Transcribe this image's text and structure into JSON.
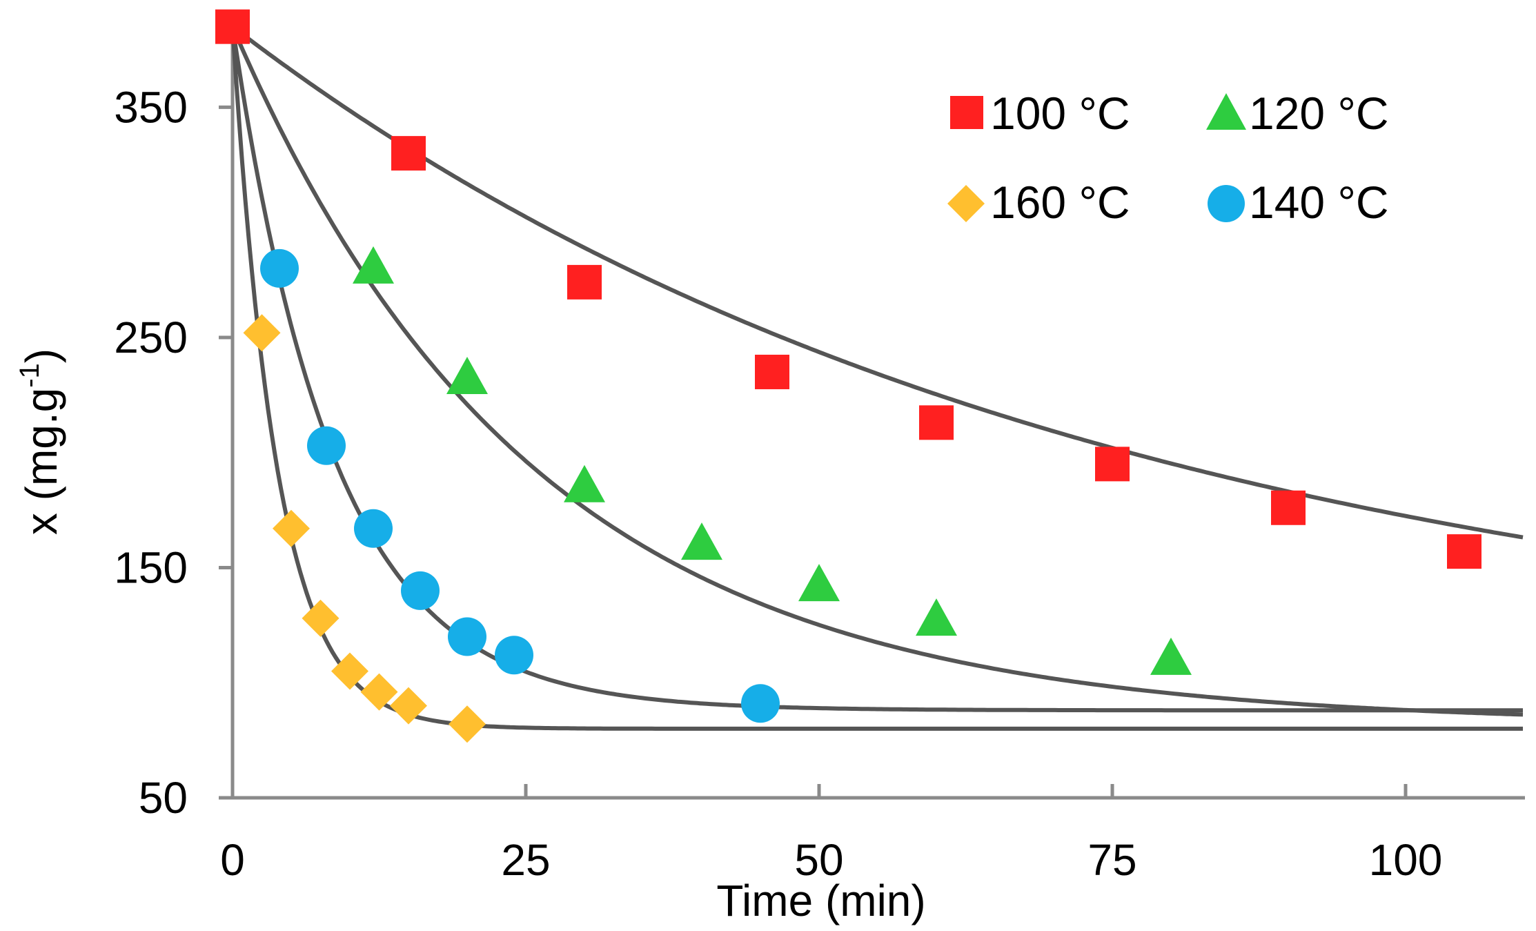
{
  "chart_data": {
    "type": "scatter",
    "title": "",
    "xlabel": "Time (min)",
    "ylabel_main": "x (mg.g",
    "ylabel_sup": "-1",
    "ylabel_close": ")",
    "xlim": [
      0,
      110
    ],
    "ylim": [
      50,
      390
    ],
    "xticks": [
      0,
      25,
      50,
      75,
      100
    ],
    "xtick_labels": [
      "0",
      "25",
      "50",
      "75",
      "100"
    ],
    "yticks": [
      50,
      150,
      250,
      350
    ],
    "ytick_labels": [
      "50",
      "150",
      "250",
      "350"
    ],
    "grid": false,
    "legend_position": "top-right",
    "series": [
      {
        "name": "100 °C",
        "marker": "square",
        "color": "#ff2020",
        "x": [
          0,
          15,
          30,
          46,
          60,
          75,
          90,
          105
        ],
        "y": [
          385,
          330,
          274,
          235,
          213,
          195,
          176,
          157
        ],
        "fit": {
          "a": 245,
          "k": 0.0137
        }
      },
      {
        "name": "120 °C",
        "marker": "triangle",
        "color": "#2ecc40",
        "x": [
          12,
          20,
          30,
          40,
          50,
          60,
          80
        ],
        "y": [
          280,
          232,
          185,
          160,
          142,
          127,
          110
        ],
        "fit": {
          "a": 288,
          "k": 0.039
        }
      },
      {
        "name": "160 °C",
        "marker": "diamond",
        "color": "#ffbf2f",
        "x": [
          2.5,
          5,
          7.5,
          10,
          12.5,
          15,
          20
        ],
        "y": [
          252,
          167,
          128,
          105,
          96,
          90,
          82
        ],
        "fit": {
          "a": 303,
          "k": 0.26
        }
      },
      {
        "name": "140 °C",
        "marker": "circle",
        "color": "#16aee8",
        "x": [
          4,
          8,
          12,
          16,
          20,
          24,
          45
        ],
        "y": [
          280,
          203,
          167,
          140,
          120,
          112,
          91
        ],
        "fit": {
          "a": 296,
          "k": 0.115
        }
      }
    ],
    "fit_asymptotes": [
      100,
      82,
      80,
      88
    ]
  }
}
